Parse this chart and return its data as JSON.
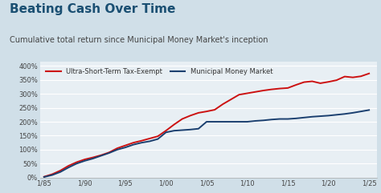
{
  "title": "Beating Cash Over Time",
  "subtitle": "Cumulative total return since Municipal Money Market's inception",
  "title_color": "#1a4f72",
  "title_fontsize": 11,
  "subtitle_fontsize": 7,
  "background_color": "#d0dfe8",
  "plot_background_color": "#e8eff4",
  "legend_label_red": "Ultra-Short-Term Tax-Exempt",
  "legend_label_blue": "Municipal Money Market",
  "red_color": "#cc1111",
  "blue_color": "#1a3f6f",
  "x_ticks": [
    "1/85",
    "1/90",
    "1/95",
    "1/00",
    "1/05",
    "1/10",
    "1/15",
    "1/20",
    "1/25"
  ],
  "x_tick_values": [
    0,
    5,
    10,
    15,
    20,
    25,
    30,
    35,
    40
  ],
  "y_ticks": [
    0,
    50,
    100,
    150,
    200,
    250,
    300,
    350,
    400
  ],
  "ylim": [
    0,
    415
  ],
  "xlim": [
    -0.5,
    41
  ],
  "red_x": [
    0,
    1,
    2,
    3,
    4,
    5,
    6,
    7,
    8,
    9,
    10,
    11,
    12,
    13,
    14,
    15,
    16,
    17,
    18,
    19,
    20,
    21,
    22,
    23,
    24,
    25,
    26,
    27,
    28,
    29,
    30,
    31,
    32,
    33,
    34,
    35,
    36,
    37,
    38,
    39,
    40
  ],
  "red_y": [
    3,
    12,
    25,
    42,
    55,
    65,
    72,
    80,
    90,
    105,
    115,
    125,
    132,
    140,
    148,
    168,
    190,
    210,
    222,
    232,
    237,
    243,
    263,
    280,
    297,
    302,
    307,
    312,
    316,
    319,
    321,
    332,
    342,
    345,
    338,
    343,
    349,
    362,
    359,
    363,
    373
  ],
  "blue_x": [
    0,
    1,
    2,
    3,
    4,
    5,
    6,
    7,
    8,
    9,
    10,
    11,
    12,
    13,
    14,
    15,
    16,
    17,
    18,
    19,
    20,
    21,
    22,
    23,
    24,
    25,
    26,
    27,
    28,
    29,
    30,
    31,
    32,
    33,
    34,
    35,
    36,
    37,
    38,
    39,
    40
  ],
  "blue_y": [
    2,
    9,
    20,
    36,
    50,
    60,
    68,
    78,
    88,
    100,
    108,
    118,
    125,
    130,
    138,
    162,
    168,
    170,
    172,
    175,
    200,
    200,
    200,
    200,
    200,
    200,
    203,
    205,
    208,
    210,
    210,
    212,
    215,
    218,
    220,
    222,
    225,
    228,
    232,
    237,
    242
  ]
}
